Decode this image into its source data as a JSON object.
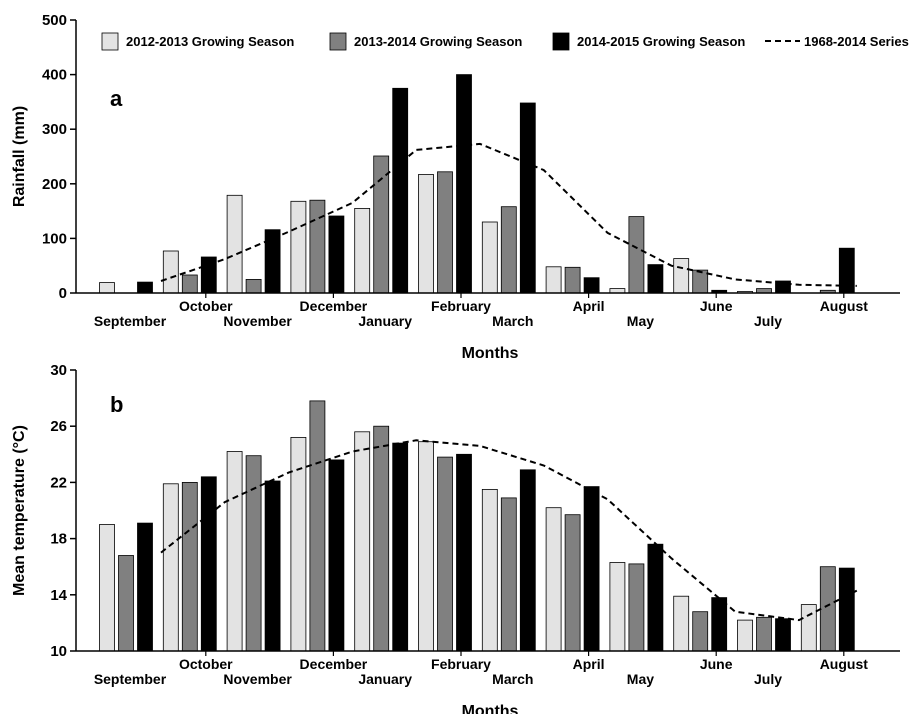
{
  "chart_data": [
    {
      "type": "bar",
      "panel_label": "a",
      "xlabel": "Months",
      "ylabel": "Rainfall (mm)",
      "ylim": [
        0,
        500
      ],
      "yticks": [
        "0",
        "100",
        "200",
        "300",
        "400",
        "500"
      ],
      "categories": [
        "September",
        "October",
        "November",
        "December",
        "January",
        "February",
        "March",
        "April",
        "May",
        "June",
        "July",
        "August"
      ],
      "series": [
        {
          "name": "2012-2013 Growing Season",
          "color": "#e3e3e3",
          "values": [
            19,
            77,
            179,
            168,
            155,
            217,
            130,
            48,
            8,
            63,
            3,
            0
          ]
        },
        {
          "name": "2013-2014 Growing Season",
          "color": "#808080",
          "values": [
            0,
            33,
            25,
            170,
            251,
            222,
            158,
            47,
            140,
            42,
            8,
            5
          ]
        },
        {
          "name": "2014-2015 Growing Season",
          "color": "#000000",
          "values": [
            20,
            66,
            116,
            141,
            375,
            400,
            348,
            28,
            52,
            5,
            22,
            82
          ]
        }
      ],
      "line": {
        "name": "1968-2014 Series",
        "values": [
          22,
          62,
          112,
          165,
          262,
          273,
          225,
          110,
          50,
          25,
          15,
          13
        ]
      },
      "grid": false,
      "legend": "top"
    },
    {
      "type": "bar",
      "panel_label": "b",
      "xlabel": "Months",
      "ylabel": "Mean temperature (°C)",
      "ylim": [
        10,
        30
      ],
      "yticks": [
        "10",
        "14",
        "18",
        "22",
        "26",
        "30"
      ],
      "categories": [
        "September",
        "October",
        "November",
        "December",
        "January",
        "February",
        "March",
        "April",
        "May",
        "June",
        "July",
        "August"
      ],
      "series": [
        {
          "name": "2012-2013 Growing Season",
          "color": "#e3e3e3",
          "values": [
            19.0,
            21.9,
            24.2,
            25.2,
            25.6,
            24.9,
            21.5,
            20.2,
            16.3,
            13.9,
            12.2,
            13.3
          ]
        },
        {
          "name": "2013-2014 Growing Season",
          "color": "#808080",
          "values": [
            16.8,
            22.0,
            23.9,
            27.8,
            26.0,
            23.8,
            20.9,
            19.7,
            16.2,
            12.8,
            12.4,
            16.0
          ]
        },
        {
          "name": "2014-2015 Growing Season",
          "color": "#000000",
          "values": [
            19.1,
            22.4,
            22.1,
            23.6,
            24.8,
            24.0,
            22.9,
            21.7,
            17.6,
            13.8,
            12.3,
            15.9
          ]
        }
      ],
      "line": {
        "name": "1968-2014 Series",
        "values": [
          17.0,
          20.6,
          22.7,
          24.2,
          25.0,
          24.6,
          23.2,
          20.8,
          16.6,
          12.8,
          12.2,
          14.3
        ]
      },
      "grid": false
    }
  ]
}
